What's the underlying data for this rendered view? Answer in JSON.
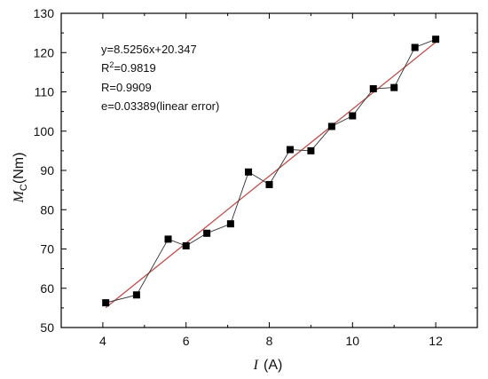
{
  "chart_data": {
    "type": "scatter",
    "xlabel": {
      "symbol": "I",
      "unit": "(A)"
    },
    "ylabel": {
      "symbol": "M",
      "subscript": "C",
      "unit": "(Nm)"
    },
    "xlim": [
      3,
      13
    ],
    "ylim": [
      50,
      130
    ],
    "xticks": [
      4,
      6,
      8,
      10,
      12
    ],
    "yticks": [
      50,
      60,
      70,
      80,
      90,
      100,
      110,
      120,
      130
    ],
    "series": [
      {
        "style": "square-markers-connected",
        "color": "#000000",
        "x": [
          4.07,
          4.81,
          5.57,
          6.0,
          6.5,
          7.07,
          7.5,
          8.0,
          8.5,
          9.0,
          9.5,
          10.0,
          10.5,
          11.0,
          11.5,
          12.0
        ],
        "y": [
          56.3,
          58.3,
          72.5,
          70.8,
          74.0,
          76.4,
          89.6,
          86.4,
          95.3,
          95.0,
          101.2,
          103.9,
          110.8,
          111.1,
          121.3,
          123.4
        ]
      }
    ],
    "fit_line": {
      "slope": 8.5256,
      "intercept": 20.347,
      "x_range": [
        4.07,
        12.0
      ],
      "color": "#c0504d"
    },
    "annotations": {
      "eq": "y=8.5256x+20.347",
      "r2_prefix": "R",
      "r2_sup": "2",
      "r2_value": "=0.9819",
      "r": "R=0.9909",
      "e": "e=0.03389(linear error)"
    }
  }
}
